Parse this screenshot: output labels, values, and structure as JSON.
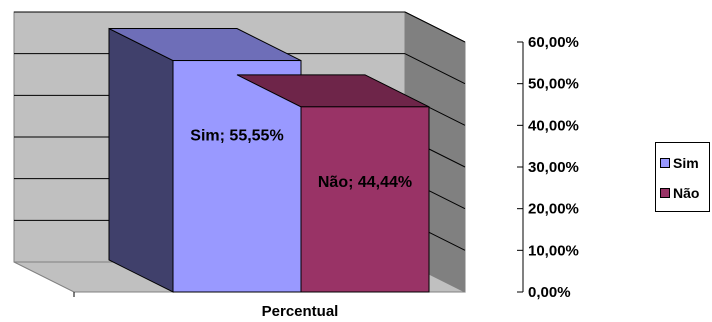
{
  "chart_data": {
    "type": "bar",
    "title": "",
    "xlabel": "Percentual",
    "ylabel": "",
    "ylim": [
      0,
      60
    ],
    "yticks": [
      "0,00%",
      "10,00%",
      "20,00%",
      "30,00%",
      "40,00%",
      "50,00%",
      "60,00%"
    ],
    "categories": [
      "Percentual"
    ],
    "series": [
      {
        "name": "Sim",
        "values": [
          55.55
        ],
        "label": "Sim; 55,55%",
        "color": "#9999ff"
      },
      {
        "name": "Não",
        "values": [
          44.44
        ],
        "label": "Não; 44,44%",
        "color": "#993366"
      }
    ],
    "grid": true,
    "legend_position": "right",
    "background_color": "#c0c0c0"
  }
}
